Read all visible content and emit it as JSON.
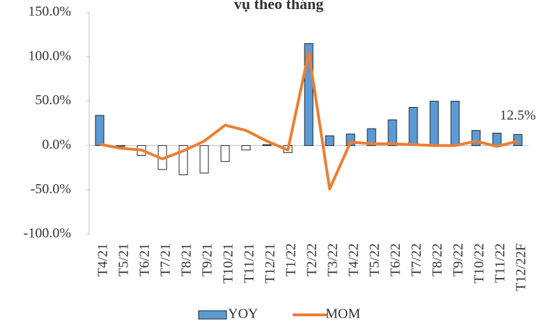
{
  "chart_data": {
    "type": "bar_line",
    "title": "vụ theo tháng",
    "categories": [
      "T4/21",
      "T5/21",
      "T6/21",
      "T7/21",
      "T8/21",
      "T9/21",
      "T10/21",
      "T11/21",
      "T12/21",
      "T1/22",
      "T2/22",
      "T3/22",
      "T4/22",
      "T5/22",
      "T6/22",
      "T7/22",
      "T8/22",
      "T9/22",
      "T10/22",
      "T11/22",
      "T12/22F"
    ],
    "series": [
      {
        "name": "YOY",
        "type": "bar",
        "color": "#5b9bd5",
        "negative_color": "#ffffff",
        "values": [
          34,
          -1,
          -11,
          -27,
          -33,
          -31,
          -18,
          -5,
          1,
          -8,
          115,
          11,
          13,
          19,
          29,
          43,
          50,
          50,
          17,
          14,
          12.5
        ],
        "value_labels": [
          null,
          null,
          null,
          null,
          null,
          null,
          null,
          null,
          null,
          null,
          null,
          null,
          null,
          null,
          null,
          null,
          null,
          null,
          null,
          null,
          "12.5%"
        ]
      },
      {
        "name": "MOM",
        "type": "line",
        "color": "#ed7d31",
        "values": [
          1.5,
          -3,
          -5,
          -15,
          -6,
          5,
          23,
          17,
          5,
          -5,
          105,
          -49,
          4,
          2,
          2,
          1,
          0,
          0,
          5,
          -1,
          5
        ]
      }
    ],
    "ylim": [
      -100,
      150
    ],
    "yticks": [
      {
        "value": -100,
        "label": "-100.0%"
      },
      {
        "value": -50,
        "label": "-50.0%"
      },
      {
        "value": 0,
        "label": "0.0%"
      },
      {
        "value": 50,
        "label": "50.0%"
      },
      {
        "value": 100,
        "label": "100.0%"
      },
      {
        "value": 150,
        "label": "150.0%"
      }
    ],
    "legend": "bottom"
  }
}
